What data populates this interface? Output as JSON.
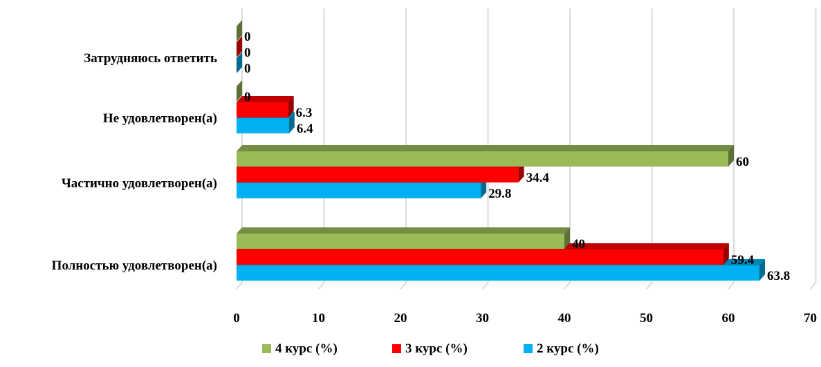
{
  "chart_data": {
    "type": "bar",
    "orientation": "horizontal",
    "three_d": true,
    "categories": [
      "Полностью удовлетворен(а)",
      "Частично удовлетворен(а)",
      "Не удовлетворен(а)",
      "Затрудняюсь ответить"
    ],
    "series": [
      {
        "name": "2 курс (%)",
        "color": "#00B0F0",
        "values": [
          63.8,
          29.8,
          6.4,
          0
        ]
      },
      {
        "name": "3 курс (%)",
        "color": "#FF0000",
        "values": [
          59.4,
          34.4,
          6.3,
          0
        ]
      },
      {
        "name": "4 курс (%)",
        "color": "#9BBB59",
        "values": [
          40,
          60,
          0,
          0
        ]
      }
    ],
    "value_labels": {
      "2 курс (%)": [
        "63.8",
        "29.8",
        "6.4",
        "0"
      ],
      "3 курс (%)": [
        "59.4",
        "34.4",
        "6.3",
        "0"
      ],
      "4 курс (%)": [
        "40",
        "60",
        "0",
        "0"
      ]
    },
    "xlim": [
      0,
      70
    ],
    "xticks": [
      0,
      10,
      20,
      30,
      40,
      50,
      60,
      70
    ],
    "xtick_labels": [
      "0",
      "10",
      "20",
      "30",
      "40",
      "50",
      "60",
      "70"
    ],
    "grid": true,
    "legend_position": "bottom",
    "legend_order": [
      "4 курс (%)",
      "3 курс (%)",
      "2 курс (%)"
    ],
    "title": "",
    "xlabel": "",
    "ylabel": ""
  }
}
